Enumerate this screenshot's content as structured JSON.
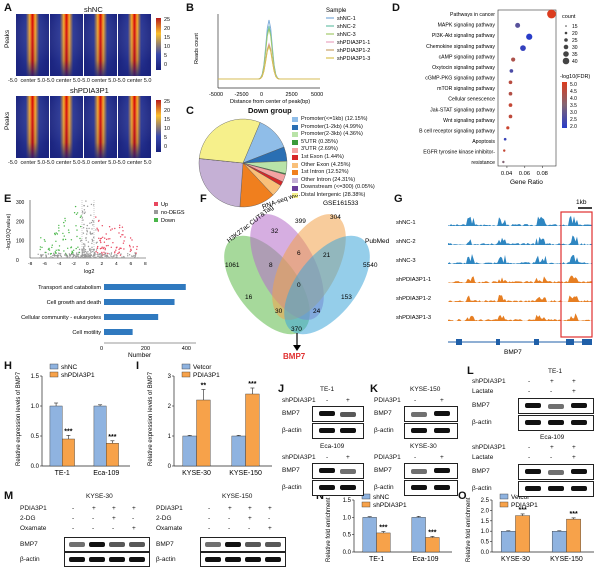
{
  "colors": {
    "shNC": "#8fb3e0",
    "shPDIA3P1": "#f7a24a",
    "heat_high": "#e31a1c",
    "heat_low": "#1a237e",
    "up": "#e8475f",
    "down": "#49b649",
    "nodeg": "#999999",
    "bar_blue": "#2f79bf",
    "track_blue": "#2e86c1",
    "track_orange": "#e67e22",
    "highlight_red": "#e03030"
  },
  "panels": {
    "A": "A",
    "B": "B",
    "C": "C",
    "D": "D",
    "E": "E",
    "F": "F",
    "G": "G",
    "H": "H",
    "I": "I",
    "J": "J",
    "K": "K",
    "L": "L",
    "M": "M",
    "N": "N",
    "O": "O"
  },
  "panelA": {
    "title1": "shNC",
    "title2": "shPDIA3P1",
    "ylabel": "Peaks",
    "xticks": [
      "-5.0",
      "center 5.0-5.0",
      "center 5.0-5.0",
      "center 5.0-5.0",
      "center 5.0"
    ],
    "colorbar": [
      "25",
      "20",
      "15",
      "10",
      "5",
      "0"
    ]
  },
  "panelC": {
    "title": "Down group",
    "legend": [
      {
        "label": "Promoter(<=1kb) (12.15%)",
        "color": "#8fbde8"
      },
      {
        "label": "Promoter(1-2kb) (4.99%)",
        "color": "#2a6fb3"
      },
      {
        "label": "Promoter(2-3kb) (4.36%)",
        "color": "#b9e3a8"
      },
      {
        "label": "5'UTR (0.35%)",
        "color": "#3a9a3a"
      },
      {
        "label": "3'UTR (2.69%)",
        "color": "#f4a3a3"
      },
      {
        "label": "1st Exon (1.44%)",
        "color": "#d62728"
      },
      {
        "label": "Other Exon (4.25%)",
        "color": "#f9c07a"
      },
      {
        "label": "1st Intron (12.52%)",
        "color": "#f07f1e"
      },
      {
        "label": "Other Intron (24.31%)",
        "color": "#c5b0d5"
      },
      {
        "label": "Downstream (<=300) (0.05%)",
        "color": "#6a3d9a"
      },
      {
        "label": "Distal Intergenic (28.38%)",
        "color": "#f6f08b"
      }
    ]
  },
  "panelD": {
    "pathways": [
      "Pathways in cancer",
      "MAPK signaling pathway",
      "PI3K-Akt signaling pathway",
      "Chemokine signaling pathway",
      "cAMP signaling pathway",
      "Oxytocin signaling pathway",
      "cGMP-PKG signaling pathway",
      "mTOR signaling pathway",
      "Cellular senescence",
      "Jak-STAT signaling pathway",
      "Wnt signaling pathway",
      "B cell receptor signaling pathway",
      "Apoptosis",
      "EGFR tyrosine kinase inhibitor-",
      "resistance"
    ],
    "xlabel": "Gene Ratio",
    "xticks": [
      "0.04",
      "0.06",
      "0.08"
    ],
    "count_title": "count",
    "count_values": [
      "15",
      "20",
      "25",
      "30",
      "35",
      "40"
    ],
    "fdr_title": "-log10(FDR)",
    "fdr_values": [
      "5.0",
      "4.5",
      "4.0",
      "3.5",
      "3.0",
      "2.5",
      "2.0"
    ]
  },
  "panelE": {
    "ylabel": "-log10(Qvalue)",
    "xlabel": "log2",
    "yticks": [
      "300",
      "200",
      "100",
      "0"
    ],
    "xticks": [
      "-8",
      "-6",
      "-4",
      "-2",
      "0",
      "2",
      "4",
      "6",
      "8"
    ],
    "legend": [
      "Up",
      "no-DEGS",
      "Down"
    ],
    "bars_xlabel": "Number",
    "bars_xticks": [
      "0",
      "200",
      "400"
    ]
  },
  "panelF": {
    "sets": [
      "H3K27ac CUT&Tag",
      "RNA-seq with shPDIA3P1",
      "GSE161533",
      "PubMed"
    ],
    "numbers": [
      "399",
      "32",
      "304",
      "1061",
      "6",
      "21",
      "5540",
      "8",
      "0",
      "16",
      "30",
      "24",
      "153",
      "370"
    ],
    "result": "BMP7"
  },
  "panelG": {
    "scale": "1kb",
    "tracks": [
      "shNC-1",
      "shNC-2",
      "shNC-3",
      "shPDIA3P1-1",
      "shPDIA3P1-2",
      "shPDIA3P1-3"
    ],
    "gene": "BMP7"
  },
  "panelH": {
    "legend": [
      "shNC",
      "shPDIA3P1"
    ],
    "ylabel": "Relative expression levels of BMP7",
    "yticks": [
      "1.5",
      "1.0",
      "0.5",
      "0.0"
    ],
    "categories": [
      "TE-1",
      "Eca-109"
    ],
    "stars": [
      "***",
      "***"
    ]
  },
  "panelI": {
    "legend": [
      "Vetcor",
      "PDIA3P1"
    ],
    "ylabel": "Relative expression levels of BMP7",
    "yticks": [
      "3",
      "2",
      "1",
      "0"
    ],
    "categories": [
      "KYSE-30",
      "KYSE-150"
    ],
    "stars": [
      "**",
      "***"
    ]
  },
  "panelJ": {
    "cells": [
      "TE-1",
      "Eca-109"
    ],
    "row": "shPDIA3P1",
    "signs": [
      "-",
      "+"
    ],
    "proteins": [
      "BMP7",
      "β-actin"
    ]
  },
  "panelK": {
    "cells": [
      "KYSE-150",
      "KYSE-30"
    ],
    "row": "PDIA3P1",
    "signs": [
      "-",
      "+"
    ],
    "proteins": [
      "BMP7",
      "β-actin"
    ]
  },
  "panelL": {
    "cells": [
      "TE-1",
      "Eca-109"
    ],
    "rows": [
      "shPDIA3P1",
      "Lactate"
    ],
    "signs_row1": [
      "-",
      "+",
      "+"
    ],
    "signs_row2": [
      "-",
      "-",
      "+"
    ],
    "proteins": [
      "BMP7",
      "β-actin"
    ]
  },
  "panelM": {
    "cells": [
      "KYSE-30",
      "KYSE-150"
    ],
    "rows": [
      "PDIA3P1",
      "2-DG",
      "Oxamate"
    ],
    "signs": [
      [
        "-",
        "+",
        "+",
        "+"
      ],
      [
        "-",
        "-",
        "+",
        "-"
      ],
      [
        "-",
        "-",
        "-",
        "+"
      ]
    ],
    "proteins": [
      "BMP7",
      "β-actin"
    ]
  },
  "panelN": {
    "legend": [
      "shNC",
      "shPDIA3P1"
    ],
    "ylabel": "Relative fold enrichment",
    "yticks": [
      "1.5",
      "1.0",
      "0.5",
      "0.0"
    ],
    "categories": [
      "TE-1",
      "Eca-109"
    ],
    "stars": [
      "***",
      "***"
    ]
  },
  "panelO": {
    "legend": [
      "Vetcor",
      "PDIA3P1"
    ],
    "ylabel": "Relative fold enrichment",
    "yticks": [
      "2.5",
      "2.0",
      "1.5",
      "1.0",
      "0.5",
      "0.0"
    ],
    "categories": [
      "KYSE-30",
      "KYSE-150"
    ],
    "stars": [
      "***",
      "***"
    ]
  },
  "chart_data": [
    {
      "type": "line",
      "title": "",
      "xlabel": "Distance from center of peak(bp)",
      "ylabel": "Reads count",
      "xticks": [
        "-5000",
        "-2500",
        "0",
        "2500",
        "5000"
      ],
      "legend_title": "Sample",
      "series": [
        {
          "name": "shNC-1",
          "peak": 4.6,
          "color": "#7aa9d8"
        },
        {
          "name": "shNC-2",
          "peak": 4.2,
          "color": "#6cc0a8"
        },
        {
          "name": "shNC-3",
          "peak": 4.0,
          "color": "#a3c96b"
        },
        {
          "name": "shPDIA3P1-1",
          "peak": 3.0,
          "color": "#e9a5c0"
        },
        {
          "name": "shPDIA3P1-2",
          "peak": 2.9,
          "color": "#c9a46b"
        },
        {
          "name": "shPDIA3P1-3",
          "peak": 2.8,
          "color": "#d8c050"
        }
      ],
      "baseline": 0.6
    },
    {
      "type": "pie",
      "title": "Down group",
      "labels": [
        "Promoter(<=1kb)",
        "Promoter(1-2kb)",
        "Promoter(2-3kb)",
        "5'UTR",
        "3'UTR",
        "1st Exon",
        "Other Exon",
        "1st Intron",
        "Other Intron",
        "Downstream (<=300)",
        "Distal Intergenic"
      ],
      "values": [
        12.15,
        4.99,
        4.36,
        0.35,
        2.69,
        1.44,
        4.25,
        12.52,
        24.31,
        0.05,
        28.38
      ]
    },
    {
      "type": "scatter",
      "title": "",
      "xlabel": "Gene Ratio",
      "categories": [
        "Pathways in cancer",
        "MAPK signaling pathway",
        "PI3K-Akt signaling pathway",
        "Chemokine signaling pathway",
        "cAMP signaling pathway",
        "Oxytocin signaling pathway",
        "cGMP-PKG signaling pathway",
        "mTOR signaling pathway",
        "Cellular senescence",
        "Jak-STAT signaling pathway",
        "Wnt signaling pathway",
        "B cell receptor signaling pathway",
        "Apoptosis",
        "EGFR tyrosine kinase inhibitor-resistance"
      ],
      "gene_ratio": [
        0.09,
        0.052,
        0.065,
        0.058,
        0.047,
        0.045,
        0.044,
        0.044,
        0.044,
        0.044,
        0.041,
        0.038,
        0.037,
        0.036
      ],
      "count": [
        40,
        25,
        30,
        28,
        22,
        20,
        20,
        20,
        20,
        20,
        18,
        16,
        15,
        15
      ],
      "neg_log10_fdr": [
        5.0,
        2.8,
        2.0,
        2.2,
        4.2,
        2.6,
        4.4,
        4.3,
        4.6,
        4.5,
        4.7,
        2.3,
        4.6,
        3.5
      ],
      "xlim": [
        0.03,
        0.095
      ]
    },
    {
      "type": "bar",
      "title": "",
      "orientation": "horizontal",
      "xlabel": "Number",
      "categories": [
        "Transport and catabolism",
        "Cell growth and death",
        "Cellular community - eukaryotes",
        "Cell motility"
      ],
      "values": [
        400,
        345,
        265,
        140
      ],
      "xlim": [
        0,
        450
      ]
    },
    {
      "type": "bar",
      "title": "",
      "ylabel": "Relative expression levels of BMP7",
      "categories": [
        "TE-1",
        "Eca-109"
      ],
      "series": [
        {
          "name": "shNC",
          "values": [
            1.0,
            1.0
          ],
          "err": [
            0.05,
            0.02
          ]
        },
        {
          "name": "shPDIA3P1",
          "values": [
            0.45,
            0.38
          ],
          "err": [
            0.06,
            0.04
          ]
        }
      ],
      "ylim": [
        0,
        1.5
      ]
    },
    {
      "type": "bar",
      "title": "",
      "ylabel": "Relative expression levels of BMP7",
      "categories": [
        "KYSE-30",
        "KYSE-150"
      ],
      "series": [
        {
          "name": "Vetcor",
          "values": [
            1.0,
            1.0
          ],
          "err": [
            0.02,
            0.02
          ]
        },
        {
          "name": "PDIA3P1",
          "values": [
            2.2,
            2.4
          ],
          "err": [
            0.35,
            0.2
          ]
        }
      ],
      "ylim": [
        0,
        3
      ]
    },
    {
      "type": "bar",
      "title": "",
      "ylabel": "Relative fold enrichment",
      "categories": [
        "TE-1",
        "Eca-109"
      ],
      "series": [
        {
          "name": "shNC",
          "values": [
            1.0,
            1.0
          ],
          "err": [
            0.02,
            0.03
          ]
        },
        {
          "name": "shPDIA3P1",
          "values": [
            0.55,
            0.42
          ],
          "err": [
            0.04,
            0.03
          ]
        }
      ],
      "ylim": [
        0,
        1.5
      ]
    },
    {
      "type": "bar",
      "title": "",
      "ylabel": "Relative fold enrichment",
      "categories": [
        "KYSE-30",
        "KYSE-150"
      ],
      "series": [
        {
          "name": "Vetcor",
          "values": [
            1.0,
            1.0
          ],
          "err": [
            0.02,
            0.02
          ]
        },
        {
          "name": "PDIA3P1",
          "values": [
            1.75,
            1.58
          ],
          "err": [
            0.08,
            0.06
          ]
        }
      ],
      "ylim": [
        0,
        2.5
      ]
    }
  ]
}
